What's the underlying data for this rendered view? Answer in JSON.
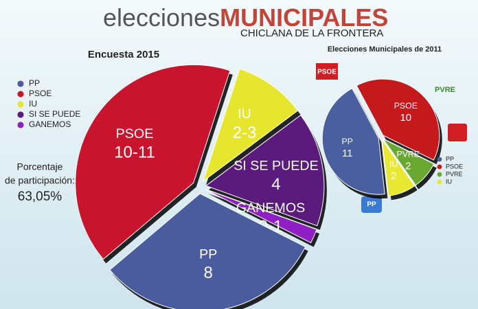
{
  "header": {
    "title_light": "elecciones",
    "title_bold": "MUNICIPALES",
    "subtitle": "CHICLANA DE LA FRONTERA"
  },
  "participation": [
    "Porcentaje",
    "de participación:",
    "63,05%"
  ],
  "logos": [
    "PSOE",
    "PVRE",
    "PP"
  ],
  "chart_data": [
    {
      "type": "pie",
      "title": "Encuesta 2015",
      "categories": [
        "IU",
        "SI SE PUEDE",
        "GANEMOS",
        "PP",
        "PSOE"
      ],
      "values": [
        2,
        4,
        0,
        8,
        10
      ],
      "values_high": [
        3,
        4,
        1,
        8,
        11
      ],
      "value_labels": [
        "2-3",
        "4",
        "0-1",
        "8",
        "10-11"
      ],
      "colors": [
        "#e6e62e",
        "#5b1b7c",
        "#8f1fc4",
        "#4a5b9e",
        "#c8142c"
      ],
      "legend": [
        "PP",
        "PSOE",
        "IU",
        "SI SE PUEDE",
        "GANEMOS"
      ]
    },
    {
      "type": "pie",
      "title": "Elecciones Municipales de 2011",
      "categories": [
        "PSOE",
        "PVRE",
        "IU",
        "PP"
      ],
      "values": [
        10,
        2,
        2,
        11
      ],
      "colors": [
        "#c41a1e",
        "#6aa832",
        "#e8e832",
        "#4a5fa0"
      ],
      "legend": [
        "PP",
        "PSOE",
        "PVRE",
        "IU"
      ]
    }
  ]
}
